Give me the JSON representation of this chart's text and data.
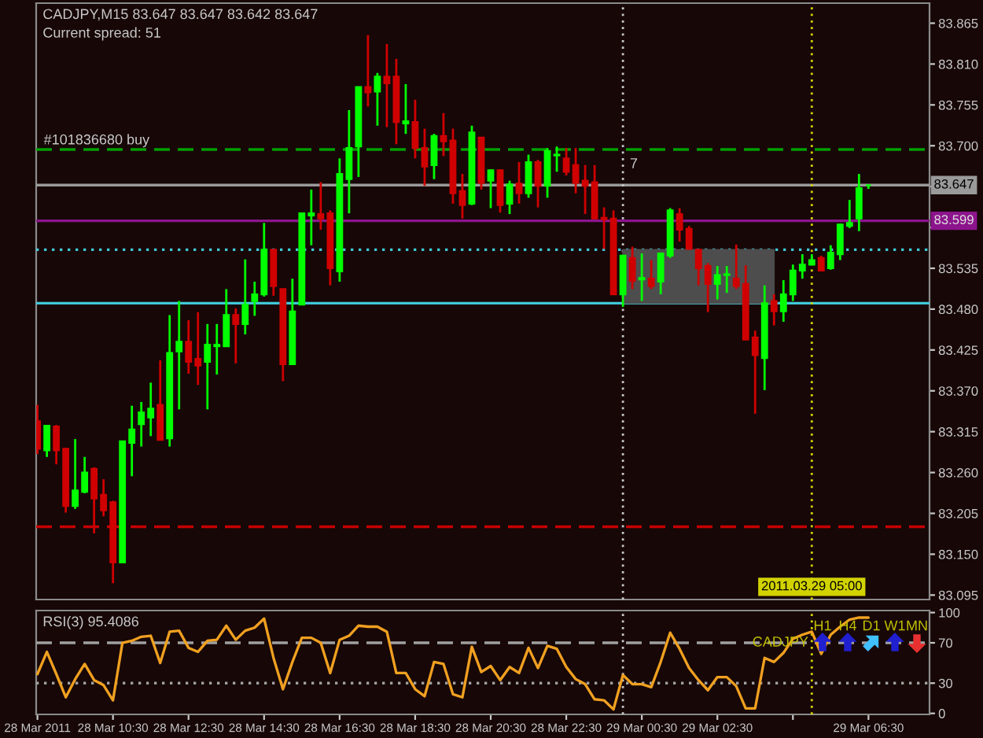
{
  "chart_data": [
    {
      "type": "candlestick",
      "title": "CADJPY,M15 83.647 83.647 83.642 83.647",
      "subtitle": "Current spread: 51",
      "x": [
        "2011-03-28T08:30",
        "2011-03-28T08:45",
        "2011-03-28T09:00",
        "2011-03-28T09:15",
        "2011-03-28T09:30",
        "2011-03-28T09:45",
        "2011-03-28T10:00",
        "2011-03-28T10:15",
        "2011-03-28T10:30",
        "2011-03-28T10:45",
        "2011-03-28T11:00",
        "2011-03-28T11:15",
        "2011-03-28T11:30",
        "2011-03-28T11:45",
        "2011-03-28T12:00",
        "2011-03-28T12:15",
        "2011-03-28T12:30",
        "2011-03-28T12:45",
        "2011-03-28T13:00",
        "2011-03-28T13:15",
        "2011-03-28T13:30",
        "2011-03-28T13:45",
        "2011-03-28T14:00",
        "2011-03-28T14:15",
        "2011-03-28T14:30",
        "2011-03-28T14:45",
        "2011-03-28T15:00",
        "2011-03-28T15:15",
        "2011-03-28T15:30",
        "2011-03-28T15:45",
        "2011-03-28T16:00",
        "2011-03-28T16:15",
        "2011-03-28T16:30",
        "2011-03-28T16:45",
        "2011-03-28T17:00",
        "2011-03-28T17:15",
        "2011-03-28T17:30",
        "2011-03-28T17:45",
        "2011-03-28T18:00",
        "2011-03-28T18:15",
        "2011-03-28T18:30",
        "2011-03-28T18:45",
        "2011-03-28T19:00",
        "2011-03-28T19:15",
        "2011-03-28T19:30",
        "2011-03-28T19:45",
        "2011-03-28T20:00",
        "2011-03-28T20:15",
        "2011-03-28T20:30",
        "2011-03-28T20:45",
        "2011-03-28T21:00",
        "2011-03-28T21:15",
        "2011-03-28T21:30",
        "2011-03-28T21:45",
        "2011-03-28T22:00",
        "2011-03-28T22:15",
        "2011-03-28T22:30",
        "2011-03-28T22:45",
        "2011-03-28T23:00",
        "2011-03-28T23:15",
        "2011-03-28T23:30",
        "2011-03-28T23:45",
        "2011-03-29T00:00",
        "2011-03-29T00:15",
        "2011-03-29T00:30",
        "2011-03-29T00:45",
        "2011-03-29T01:00",
        "2011-03-29T01:15",
        "2011-03-29T01:30",
        "2011-03-29T01:45",
        "2011-03-29T02:00",
        "2011-03-29T02:15",
        "2011-03-29T02:30",
        "2011-03-29T02:45",
        "2011-03-29T03:00",
        "2011-03-29T03:15",
        "2011-03-29T03:30",
        "2011-03-29T03:45",
        "2011-03-29T04:00",
        "2011-03-29T04:15",
        "2011-03-29T04:30",
        "2011-03-29T04:45",
        "2011-03-29T05:00",
        "2011-03-29T05:15",
        "2011-03-29T05:30",
        "2011-03-29T05:45",
        "2011-03-29T06:00",
        "2011-03-29T06:15",
        "2011-03-29T06:30"
      ],
      "ohlc": [
        [
          83.329,
          83.351,
          83.285,
          83.292
        ],
        [
          83.29,
          83.323,
          83.281,
          83.323
        ],
        [
          83.322,
          83.324,
          83.271,
          83.29
        ],
        [
          83.292,
          83.293,
          83.206,
          83.215
        ],
        [
          83.215,
          83.305,
          83.211,
          83.236
        ],
        [
          83.234,
          83.281,
          83.232,
          83.26
        ],
        [
          83.265,
          83.267,
          83.178,
          83.225
        ],
        [
          83.23,
          83.251,
          83.201,
          83.209
        ],
        [
          83.22,
          83.222,
          83.111,
          83.139
        ],
        [
          83.139,
          83.302,
          83.138,
          83.302
        ],
        [
          83.3,
          83.35,
          83.255,
          83.318
        ],
        [
          83.325,
          83.355,
          83.295,
          83.341
        ],
        [
          83.334,
          83.381,
          83.309,
          83.346
        ],
        [
          83.351,
          83.411,
          83.304,
          83.304
        ],
        [
          83.306,
          83.472,
          83.295,
          83.421
        ],
        [
          83.423,
          83.491,
          83.345,
          83.436
        ],
        [
          83.436,
          83.465,
          83.393,
          83.409
        ],
        [
          83.413,
          83.476,
          83.378,
          83.404
        ],
        [
          83.409,
          83.46,
          83.345,
          83.432
        ],
        [
          83.43,
          83.46,
          83.392,
          83.432
        ],
        [
          83.43,
          83.507,
          83.43,
          83.472
        ],
        [
          83.472,
          83.481,
          83.407,
          83.46
        ],
        [
          83.46,
          83.547,
          83.446,
          83.486
        ],
        [
          83.491,
          83.517,
          83.471,
          83.5
        ],
        [
          83.5,
          83.596,
          83.497,
          83.56
        ],
        [
          83.56,
          83.56,
          83.498,
          83.511
        ],
        [
          83.507,
          83.507,
          83.383,
          83.406
        ],
        [
          83.406,
          83.521,
          83.406,
          83.477
        ],
        [
          83.486,
          83.609,
          83.486,
          83.609
        ],
        [
          83.606,
          83.641,
          83.566,
          83.609
        ],
        [
          83.608,
          83.651,
          83.587,
          83.602
        ],
        [
          83.609,
          83.613,
          83.512,
          83.535
        ],
        [
          83.531,
          83.683,
          83.517,
          83.662
        ],
        [
          83.655,
          83.748,
          83.609,
          83.697
        ],
        [
          83.699,
          83.779,
          83.658,
          83.779
        ],
        [
          83.779,
          83.849,
          83.753,
          83.772
        ],
        [
          83.773,
          83.798,
          83.727,
          83.793
        ],
        [
          83.793,
          83.837,
          83.725,
          83.784
        ],
        [
          83.793,
          83.817,
          83.702,
          83.732
        ],
        [
          83.73,
          83.783,
          83.716,
          83.733
        ],
        [
          83.732,
          83.762,
          83.683,
          83.697
        ],
        [
          83.697,
          83.723,
          83.646,
          83.672
        ],
        [
          83.674,
          83.716,
          83.655,
          83.713
        ],
        [
          83.713,
          83.744,
          83.686,
          83.706
        ],
        [
          83.707,
          83.723,
          83.622,
          83.636
        ],
        [
          83.639,
          83.662,
          83.602,
          83.62
        ],
        [
          83.622,
          83.727,
          83.62,
          83.718
        ],
        [
          83.711,
          83.712,
          83.641,
          83.65
        ],
        [
          83.653,
          83.668,
          83.616,
          83.667
        ],
        [
          83.667,
          83.668,
          83.61,
          83.62
        ],
        [
          83.622,
          83.653,
          83.608,
          83.648
        ],
        [
          83.649,
          83.678,
          83.622,
          83.636
        ],
        [
          83.636,
          83.688,
          83.63,
          83.678
        ],
        [
          83.678,
          83.681,
          83.617,
          83.646
        ],
        [
          83.646,
          83.697,
          83.63,
          83.693
        ],
        [
          83.687,
          83.699,
          83.665,
          83.688
        ],
        [
          83.683,
          83.697,
          83.66,
          83.665
        ],
        [
          83.674,
          83.697,
          83.636,
          83.65
        ],
        [
          83.653,
          83.674,
          83.608,
          83.646
        ],
        [
          83.651,
          83.674,
          83.601,
          83.602
        ],
        [
          83.603,
          83.617,
          83.561,
          83.601
        ],
        [
          83.602,
          83.613,
          83.5,
          83.5
        ],
        [
          83.5,
          83.553,
          83.483,
          83.552
        ],
        [
          83.549,
          83.564,
          83.507,
          83.518
        ],
        [
          83.52,
          83.555,
          83.491,
          83.522
        ],
        [
          83.521,
          83.546,
          83.507,
          83.511
        ],
        [
          83.517,
          83.556,
          83.5,
          83.555
        ],
        [
          83.552,
          83.616,
          83.549,
          83.613
        ],
        [
          83.608,
          83.616,
          83.571,
          83.587
        ],
        [
          83.588,
          83.592,
          83.56,
          83.561
        ],
        [
          83.56,
          83.561,
          83.512,
          83.535
        ],
        [
          83.538,
          83.542,
          83.476,
          83.514
        ],
        [
          83.514,
          83.538,
          83.493,
          83.526
        ],
        [
          83.526,
          83.538,
          83.502,
          83.527
        ],
        [
          83.521,
          83.567,
          83.507,
          83.511
        ],
        [
          83.514,
          83.539,
          83.439,
          83.439
        ],
        [
          83.442,
          83.451,
          83.339,
          83.418
        ],
        [
          83.414,
          83.512,
          83.371,
          83.488
        ],
        [
          83.491,
          83.5,
          83.458,
          83.477
        ],
        [
          83.477,
          83.519,
          83.463,
          83.5
        ],
        [
          83.5,
          83.54,
          83.491,
          83.532
        ],
        [
          83.532,
          83.554,
          83.521,
          83.54
        ],
        [
          83.54,
          83.554,
          83.539,
          83.546
        ],
        [
          83.549,
          83.552,
          83.532,
          83.532
        ],
        [
          83.535,
          83.566,
          83.533,
          83.556
        ],
        [
          83.554,
          83.595,
          83.546,
          83.594
        ],
        [
          83.592,
          83.627,
          83.589,
          83.596
        ],
        [
          83.602,
          83.662,
          83.585,
          83.643
        ],
        [
          83.647,
          83.647,
          83.642,
          83.647
        ]
      ],
      "colors": [
        "#d00000",
        "#00ff00",
        "#d00000",
        "#d00000",
        "#00ff00",
        "#00ff00",
        "#d00000",
        "#d00000",
        "#d00000",
        "#00ff00",
        "#00ff00",
        "#00ff00",
        "#00ff00",
        "#d00000",
        "#00ff00",
        "#00ff00",
        "#d00000",
        "#d00000",
        "#00ff00",
        "#00ff00",
        "#00ff00",
        "#d00000",
        "#00ff00",
        "#00ff00",
        "#00ff00",
        "#d00000",
        "#d00000",
        "#00ff00",
        "#00ff00",
        "#00ff00",
        "#d00000",
        "#d00000",
        "#00ff00",
        "#00ff00",
        "#00ff00",
        "#d00000",
        "#00ff00",
        "#d00000",
        "#d00000",
        "#00ff00",
        "#d00000",
        "#d00000",
        "#00ff00",
        "#d00000",
        "#d00000",
        "#d00000",
        "#00ff00",
        "#d00000",
        "#00ff00",
        "#d00000",
        "#00ff00",
        "#d00000",
        "#00ff00",
        "#d00000",
        "#00ff00",
        "#00ff00",
        "#d00000",
        "#d00000",
        "#d00000",
        "#d00000",
        "#d00000",
        "#d00000",
        "#00ff00",
        "#d00000",
        "#00ff00",
        "#d00000",
        "#00ff00",
        "#00ff00",
        "#d00000",
        "#d00000",
        "#d00000",
        "#d00000",
        "#00ff00",
        "#00ff00",
        "#d00000",
        "#d00000",
        "#d00000",
        "#00ff00",
        "#d00000",
        "#00ff00",
        "#00ff00",
        "#00ff00",
        "#00ff00",
        "#d00000",
        "#00ff00",
        "#00ff00",
        "#00ff00",
        "#00ff00",
        "#00ff00"
      ],
      "series": [
        {
          "type": "area",
          "x": [
            "2011-03-29T00:00",
            "2011-03-29T04:00"
          ],
          "values": [
            null,
            null
          ],
          "lower": [
            83.488,
            83.488
          ],
          "upper": [
            83.56,
            83.56
          ],
          "color": "#4d4d4d"
        }
      ],
      "xlim": [
        "2011-03-28T08:28",
        "2011-03-29T08:07"
      ],
      "ylim": [
        83.089,
        83.892
      ],
      "yticks": [
        83.095,
        {
          "value": 83.15,
          "label": "83.150"
        },
        83.205,
        {
          "value": 83.26,
          "label": "83.260"
        },
        83.315,
        {
          "value": 83.37,
          "label": "83.370"
        },
        83.425,
        {
          "value": 83.48,
          "label": "83.480"
        },
        83.535,
        {
          "value": 83.59,
          "label": null
        },
        {
          "value": 83.645,
          "label": null
        },
        {
          "value": 83.7,
          "label": "83.700"
        },
        83.755,
        {
          "value": 83.81,
          "label": "83.810"
        },
        83.865
      ],
      "tick_labels": "y",
      "ref_lines": [
        {
          "axis": "y",
          "value": 83.695,
          "color": "#00a000",
          "line_style": "dashed"
        },
        {
          "axis": "y",
          "value": 83.187,
          "color": "#c80000",
          "line_style": "dashed"
        },
        {
          "axis": "y",
          "value": 83.647,
          "label": "83.647",
          "color": "#9a9a9a",
          "line_style": "solid"
        },
        {
          "axis": "y",
          "value": 83.599,
          "label": "83.599",
          "color": "#8c148c",
          "line_style": "solid"
        },
        {
          "axis": "y",
          "value": 83.56,
          "color": "#40c8d8",
          "line_style": "dotted"
        },
        {
          "axis": "y",
          "value": 83.488,
          "color": "#40c8d8",
          "line_style": "solid"
        },
        {
          "axis": "x",
          "value": "2011-03-29T00:00",
          "color": "#c8c8c8",
          "line_style": "dotted"
        },
        {
          "axis": "x",
          "value": "2011-03-29T05:00",
          "label": "2011.03.29 05:00",
          "color": "#d2d200",
          "line_style": "dotted"
        }
      ],
      "annotations": [
        {
          "text": "#101836680 buy",
          "x": "2011-03-28T08:40",
          "y": 83.695
        },
        {
          "text": "7",
          "x": "2011-03-29T00:11",
          "y": 83.663
        }
      ]
    },
    {
      "type": "line",
      "title": "RSI(3) 95.4086",
      "x": [
        "2011-03-28T08:30",
        "2011-03-28T08:45",
        "2011-03-28T09:00",
        "2011-03-28T09:15",
        "2011-03-28T09:30",
        "2011-03-28T09:45",
        "2011-03-28T10:00",
        "2011-03-28T10:15",
        "2011-03-28T10:30",
        "2011-03-28T10:45",
        "2011-03-28T11:00",
        "2011-03-28T11:15",
        "2011-03-28T11:30",
        "2011-03-28T11:45",
        "2011-03-28T12:00",
        "2011-03-28T12:15",
        "2011-03-28T12:30",
        "2011-03-28T12:45",
        "2011-03-28T13:00",
        "2011-03-28T13:15",
        "2011-03-28T13:30",
        "2011-03-28T13:45",
        "2011-03-28T14:00",
        "2011-03-28T14:15",
        "2011-03-28T14:30",
        "2011-03-28T14:45",
        "2011-03-28T15:00",
        "2011-03-28T15:15",
        "2011-03-28T15:30",
        "2011-03-28T15:45",
        "2011-03-28T16:00",
        "2011-03-28T16:15",
        "2011-03-28T16:30",
        "2011-03-28T16:45",
        "2011-03-28T17:00",
        "2011-03-28T17:15",
        "2011-03-28T17:30",
        "2011-03-28T17:45",
        "2011-03-28T18:00",
        "2011-03-28T18:15",
        "2011-03-28T18:30",
        "2011-03-28T18:45",
        "2011-03-28T19:00",
        "2011-03-28T19:15",
        "2011-03-28T19:30",
        "2011-03-28T19:45",
        "2011-03-28T20:00",
        "2011-03-28T20:15",
        "2011-03-28T20:30",
        "2011-03-28T20:45",
        "2011-03-28T21:00",
        "2011-03-28T21:15",
        "2011-03-28T21:30",
        "2011-03-28T21:45",
        "2011-03-28T22:00",
        "2011-03-28T22:15",
        "2011-03-28T22:30",
        "2011-03-28T22:45",
        "2011-03-28T23:00",
        "2011-03-28T23:15",
        "2011-03-28T23:30",
        "2011-03-28T23:45",
        "2011-03-29T00:00",
        "2011-03-29T00:15",
        "2011-03-29T00:30",
        "2011-03-29T00:45",
        "2011-03-29T01:00",
        "2011-03-29T01:15",
        "2011-03-29T01:30",
        "2011-03-29T01:45",
        "2011-03-29T02:00",
        "2011-03-29T02:15",
        "2011-03-29T02:30",
        "2011-03-29T02:45",
        "2011-03-29T03:00",
        "2011-03-29T03:15",
        "2011-03-29T03:30",
        "2011-03-29T03:45",
        "2011-03-29T04:00",
        "2011-03-29T04:15",
        "2011-03-29T04:30",
        "2011-03-29T04:45",
        "2011-03-29T05:00",
        "2011-03-29T05:15",
        "2011-03-29T05:30",
        "2011-03-29T05:45",
        "2011-03-29T06:00",
        "2011-03-29T06:15",
        "2011-03-29T06:30"
      ],
      "series": [
        {
          "color": "#f0a020",
          "values": [
            39,
            61,
            39,
            16,
            34,
            49,
            33,
            28,
            13,
            70,
            72,
            76,
            77,
            50,
            81,
            82,
            65,
            61,
            72,
            73,
            87,
            73,
            82,
            85,
            94,
            55,
            24,
            51,
            75,
            75,
            70,
            40,
            73,
            77,
            87,
            86,
            86,
            81,
            40,
            40,
            24,
            17,
            51,
            49,
            19,
            16,
            66,
            41,
            47,
            33,
            46,
            40,
            65,
            45,
            67,
            64,
            46,
            34,
            29,
            14,
            13,
            4,
            38,
            29,
            29,
            26,
            51,
            80,
            64,
            45,
            33,
            23,
            36,
            36,
            27,
            5,
            5,
            55,
            51,
            60,
            74,
            78,
            81,
            59,
            78,
            86,
            93,
            95,
            95
          ]
        }
      ],
      "xlim": [
        "2011-03-28T08:28",
        "2011-03-29T08:07"
      ],
      "ylim": [
        -1,
        102
      ],
      "xticks": [
        {
          "value": "2011-03-28T08:30",
          "label": "28 Mar 2011"
        },
        {
          "value": "2011-03-28T10:30",
          "label": "28 Mar 10:30"
        },
        {
          "value": "2011-03-28T12:30",
          "label": "28 Mar 12:30"
        },
        {
          "value": "2011-03-28T14:30",
          "label": "28 Mar 14:30"
        },
        {
          "value": "2011-03-28T16:30",
          "label": "28 Mar 16:30"
        },
        {
          "value": "2011-03-28T18:30",
          "label": "28 Mar 18:30"
        },
        {
          "value": "2011-03-28T20:30",
          "label": "28 Mar 20:30"
        },
        {
          "value": "2011-03-28T22:30",
          "label": "28 Mar 22:30"
        },
        {
          "value": "2011-03-29T00:30",
          "label": "29 Mar 00:30"
        },
        {
          "value": "2011-03-29T02:30",
          "label": "29 Mar 02:30"
        },
        {
          "value": "2011-03-29T04:30",
          "label": null
        },
        {
          "value": "2011-03-29T06:30",
          "label": "29 Mar 06:30"
        }
      ],
      "yticks": [
        0,
        30,
        70,
        100
      ],
      "ref_lines": [
        {
          "axis": "y",
          "value": 70,
          "color": "#a0a0a0",
          "line_style": "dashed"
        },
        {
          "axis": "y",
          "value": 30,
          "color": "#a0a0a0",
          "line_style": "dotted"
        },
        {
          "axis": "x",
          "value": "2011-03-29T00:00",
          "color": "#c8c8c8",
          "line_style": "dotted"
        },
        {
          "axis": "x",
          "value": "2011-03-29T05:00",
          "color": "#d2d200",
          "line_style": "dotted"
        }
      ],
      "annotations": [
        "CADJPY",
        "H1",
        "H4",
        "D1",
        "W1",
        "MN"
      ]
    }
  ]
}
